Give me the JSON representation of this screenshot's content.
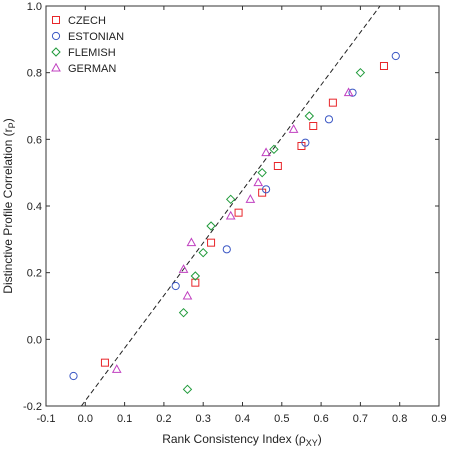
{
  "chart_data": {
    "type": "scatter",
    "title": "",
    "xlabel_main": "Rank Consistency Index (ρ",
    "xlabel_sub": "XY",
    "xlabel_close": ")",
    "ylabel_main": "Distinctive Profile Correlation (r",
    "ylabel_sub": "P",
    "ylabel_close": ")",
    "xlim": [
      -0.1,
      0.9
    ],
    "ylim": [
      -0.2,
      1.0
    ],
    "xticks": [
      -0.1,
      0.0,
      0.1,
      0.2,
      0.3,
      0.4,
      0.5,
      0.6,
      0.7,
      0.8,
      0.9
    ],
    "xtick_labels": [
      "-0.1",
      "0.0",
      "0.1",
      "0.2",
      "0.3",
      "0.4",
      "0.5",
      "0.6",
      "0.7",
      "0.8",
      "0.9"
    ],
    "yticks": [
      -0.2,
      0.0,
      0.2,
      0.4,
      0.6,
      0.8,
      1.0
    ],
    "ytick_labels": [
      "-0.2",
      "0.0",
      "0.2",
      "0.4",
      "0.6",
      "0.8",
      "1.0"
    ],
    "grid": false,
    "legend_position": "top-left",
    "series": [
      {
        "name": "CZECH",
        "marker": "square",
        "color": "#e8262a",
        "points": [
          [
            0.05,
            -0.07
          ],
          [
            0.28,
            0.17
          ],
          [
            0.32,
            0.29
          ],
          [
            0.39,
            0.38
          ],
          [
            0.45,
            0.44
          ],
          [
            0.49,
            0.52
          ],
          [
            0.55,
            0.58
          ],
          [
            0.58,
            0.64
          ],
          [
            0.63,
            0.71
          ],
          [
            0.76,
            0.82
          ]
        ]
      },
      {
        "name": "ESTONIAN",
        "marker": "circle",
        "color": "#3b57c4",
        "points": [
          [
            -0.03,
            -0.11
          ],
          [
            0.23,
            0.16
          ],
          [
            0.36,
            0.27
          ],
          [
            0.46,
            0.45
          ],
          [
            0.56,
            0.59
          ],
          [
            0.62,
            0.66
          ],
          [
            0.68,
            0.74
          ],
          [
            0.79,
            0.85
          ]
        ]
      },
      {
        "name": "FLEMISH",
        "marker": "diamond",
        "color": "#1f9a3a",
        "points": [
          [
            0.26,
            -0.15
          ],
          [
            0.25,
            0.08
          ],
          [
            0.28,
            0.19
          ],
          [
            0.3,
            0.26
          ],
          [
            0.32,
            0.34
          ],
          [
            0.37,
            0.42
          ],
          [
            0.45,
            0.5
          ],
          [
            0.48,
            0.57
          ],
          [
            0.57,
            0.67
          ],
          [
            0.7,
            0.8
          ]
        ]
      },
      {
        "name": "GERMAN",
        "marker": "triangle",
        "color": "#c040c0",
        "points": [
          [
            0.08,
            -0.09
          ],
          [
            0.25,
            0.21
          ],
          [
            0.27,
            0.29
          ],
          [
            0.26,
            0.13
          ],
          [
            0.37,
            0.37
          ],
          [
            0.42,
            0.42
          ],
          [
            0.44,
            0.47
          ],
          [
            0.46,
            0.56
          ],
          [
            0.53,
            0.63
          ],
          [
            0.67,
            0.74
          ]
        ]
      }
    ],
    "fit_line": {
      "style": "dashed",
      "color": "#222222",
      "x": [
        -0.01,
        0.75
      ],
      "y": [
        -0.2,
        1.0
      ]
    }
  }
}
